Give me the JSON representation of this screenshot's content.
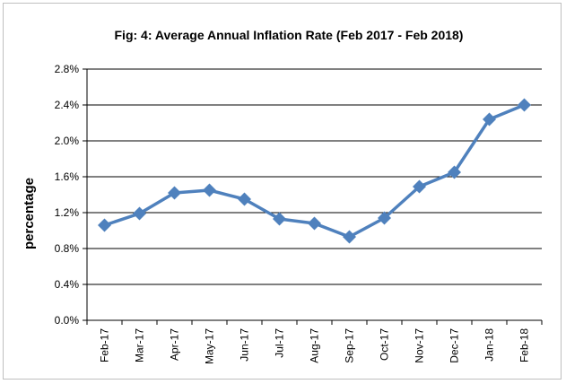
{
  "chart_data": {
    "type": "line",
    "title": "Fig: 4: Average Annual Inflation Rate (Feb 2017 - Feb 2018)",
    "ylabel": "percentage",
    "xlabel": "",
    "categories": [
      "Feb-17",
      "Mar-17",
      "Apr-17",
      "May-17",
      "Jun-17",
      "Jul-17",
      "Aug-17",
      "Sep-17",
      "Oct-17",
      "Nov-17",
      "Dec-17",
      "Jan-18",
      "Feb-18"
    ],
    "series": [
      {
        "values": [
          1.06,
          1.19,
          1.42,
          1.45,
          1.35,
          1.13,
          1.08,
          0.93,
          1.14,
          1.49,
          1.65,
          2.24,
          2.4
        ]
      }
    ],
    "ylim": [
      0,
      2.8
    ],
    "yticks": [
      "0.0%",
      "0.4%",
      "0.8%",
      "1.2%",
      "1.6%",
      "2.0%",
      "2.4%",
      "2.8%"
    ],
    "ytick_values": [
      0,
      0.4,
      0.8,
      1.2,
      1.6,
      2.0,
      2.4,
      2.8
    ],
    "grid": true,
    "legend": "none",
    "colors": {
      "line": "#4f81bd",
      "grid": "#000000"
    }
  }
}
